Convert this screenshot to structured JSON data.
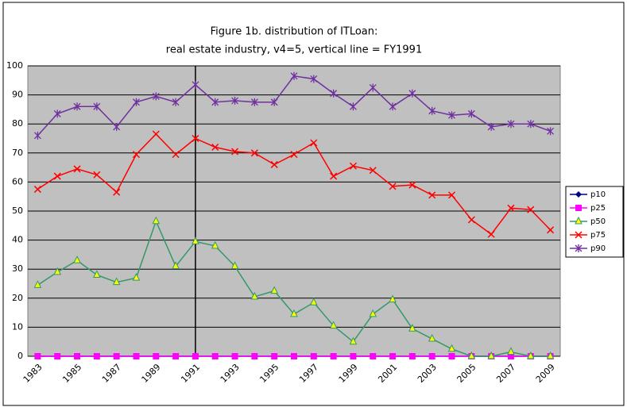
{
  "chart_data": {
    "type": "line",
    "title": "Figure 1b. distribution of  ITLoan:",
    "subtitle": "real estate industry, v4=5, vertical line = FY1991",
    "categories": [
      "1983",
      null,
      "1985",
      null,
      "1987",
      null,
      "1989",
      null,
      "1991",
      null,
      "1993",
      null,
      "1995",
      null,
      "1997",
      null,
      "1999",
      null,
      "2001",
      null,
      "2003",
      null,
      "2005",
      null,
      "2007",
      null,
      "2009"
    ],
    "vertical_line": "1991",
    "ylim": [
      0,
      100
    ],
    "yticks": [
      0,
      10,
      20,
      30,
      40,
      50,
      60,
      70,
      80,
      90,
      100
    ],
    "grid": true,
    "legend": "right",
    "series": [
      {
        "name": "p10",
        "color": "#000080",
        "marker": "diamond",
        "values": [
          0,
          0,
          0,
          0,
          0,
          0,
          0,
          0,
          0,
          0,
          0,
          0,
          0,
          0,
          0,
          0,
          0,
          0,
          0,
          0,
          0,
          0,
          0,
          0,
          0,
          0,
          0
        ]
      },
      {
        "name": "p25",
        "color": "#ff00ff",
        "marker": "square",
        "values": [
          0,
          0,
          0,
          0,
          0,
          0,
          0,
          0,
          0,
          0,
          0,
          0,
          0,
          0,
          0,
          0,
          0,
          0,
          0,
          0,
          0,
          0,
          0,
          0,
          0,
          0,
          0
        ]
      },
      {
        "name": "p50",
        "color": "#339966",
        "marker": "triangle",
        "values": [
          24.5,
          29,
          33,
          28,
          25.5,
          27,
          46.5,
          31,
          39.5,
          38,
          31,
          20.5,
          22.5,
          14.5,
          18.5,
          10.5,
          5,
          14.5,
          19.5,
          9.5,
          6,
          2.5,
          0,
          0,
          1.5,
          0,
          0
        ]
      },
      {
        "name": "p75",
        "color": "#ff0000",
        "marker": "x",
        "values": [
          57.5,
          62,
          64.5,
          62.5,
          56.5,
          69.5,
          76.5,
          69.5,
          75,
          72,
          70.5,
          70,
          66,
          69.5,
          73.5,
          62,
          65.5,
          64,
          58.5,
          59,
          55.5,
          55.5,
          47,
          42,
          51,
          50.5,
          43.5
        ]
      },
      {
        "name": "p90",
        "color": "#7030a0",
        "marker": "star",
        "values": [
          76,
          83.5,
          86,
          86,
          79,
          87.5,
          89.5,
          87.5,
          93.5,
          87.5,
          88,
          87.5,
          87.5,
          96.5,
          95.5,
          90.5,
          86,
          92.5,
          86,
          90.5,
          84.5,
          83,
          83.5,
          79,
          80,
          80,
          77.5
        ]
      }
    ]
  }
}
